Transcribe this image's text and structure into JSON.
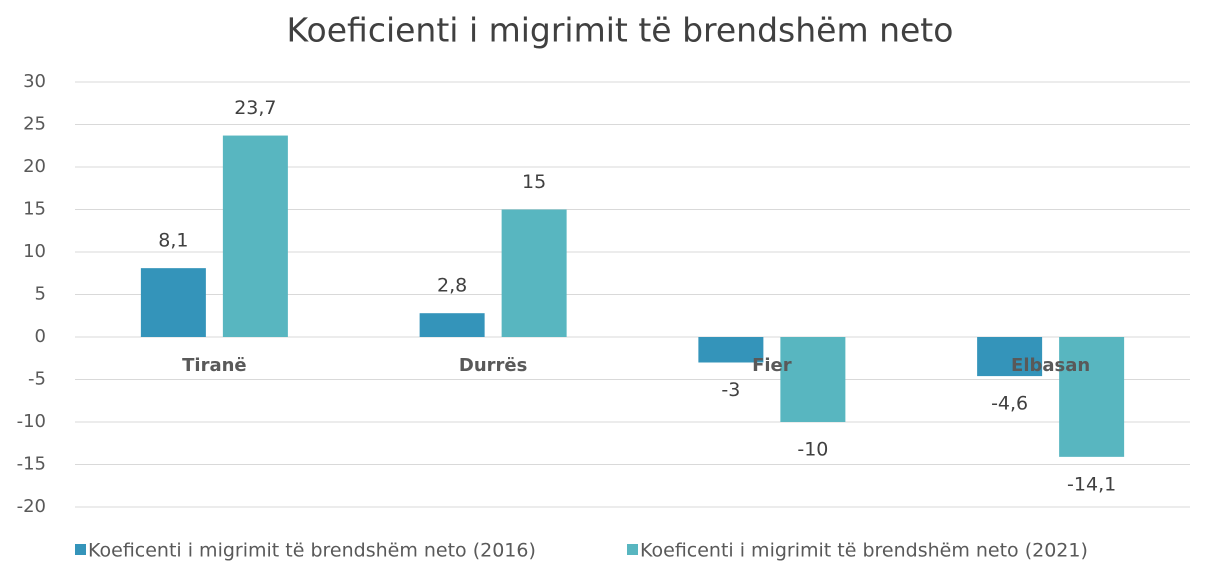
{
  "chart_data": {
    "type": "bar",
    "title": "Koeficienti i migrimit të brendshëm neto",
    "categories": [
      "Tiranë",
      "Durrës",
      "Fier",
      "Elbasan"
    ],
    "series": [
      {
        "name": "Koeficenti i migrimit të brendshëm neto (2016)",
        "color": "#3494ba",
        "values": [
          8.1,
          2.8,
          -3,
          -4.6
        ],
        "value_labels": [
          "8,1",
          "2,8",
          "-3",
          "-4,6"
        ]
      },
      {
        "name": "Koeficenti i migrimit të brendshëm neto (2021)",
        "color": "#58b6c0",
        "values": [
          23.7,
          15,
          -10,
          -14.1
        ],
        "value_labels": [
          "23,7",
          "15",
          "-10",
          "-14,1"
        ]
      }
    ],
    "ylim": [
      -20,
      30
    ],
    "yticks": [
      -20,
      -15,
      -10,
      -5,
      0,
      5,
      10,
      15,
      20,
      25,
      30
    ],
    "grid": true,
    "legend": "bottom"
  }
}
